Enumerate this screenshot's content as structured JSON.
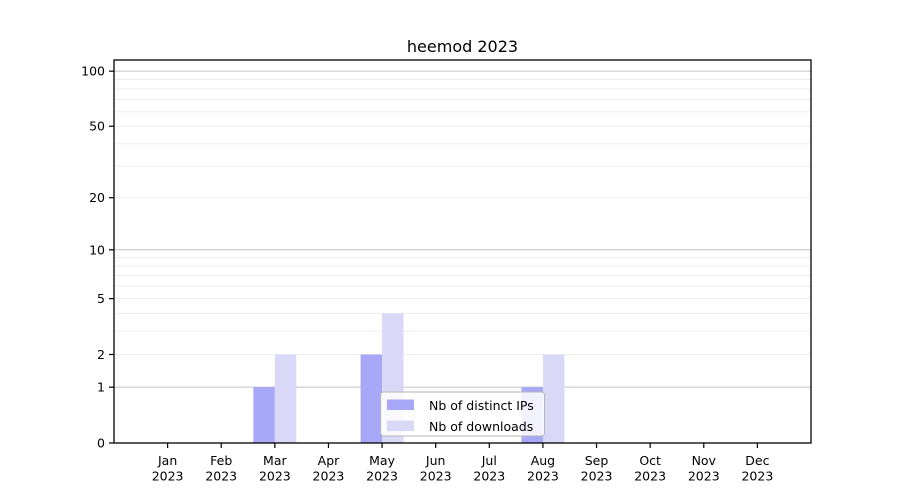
{
  "chart_data": {
    "type": "bar",
    "title": "heemod 2023",
    "categories": [
      "Jan",
      "Feb",
      "Mar",
      "Apr",
      "May",
      "Jun",
      "Jul",
      "Aug",
      "Sep",
      "Oct",
      "Nov",
      "Dec"
    ],
    "category_year": "2023",
    "series": [
      {
        "name": "Nb of distinct IPs",
        "color": "#a8a8f8",
        "values": [
          0,
          0,
          1,
          0,
          2,
          0,
          0,
          1,
          0,
          0,
          0,
          0
        ]
      },
      {
        "name": "Nb of downloads",
        "color": "#d9d9f7",
        "values": [
          0,
          0,
          2,
          0,
          4,
          0,
          0,
          2,
          0,
          0,
          0,
          0
        ]
      }
    ],
    "xlabel": "",
    "ylabel": "",
    "yscale": "log1p",
    "ylim": [
      0,
      115
    ],
    "y_ticks": [
      0,
      1,
      2,
      5,
      10,
      20,
      50,
      100
    ],
    "y_major_gridlines": [
      1,
      10,
      100
    ],
    "y_minor_gridlines": [
      2,
      3,
      4,
      5,
      6,
      7,
      8,
      9,
      20,
      30,
      40,
      50,
      60,
      70,
      80,
      90
    ],
    "grid": true,
    "legend_position": "lower center inside",
    "colors": {
      "major_gridline": "#c4c4c4",
      "minor_gridline": "#ededed",
      "axis_frame": "#000000",
      "tick_color": "#000000",
      "text": "#000000",
      "legend_border": "#b5b5b5",
      "legend_background": "rgba(255,255,255,0.85)"
    }
  }
}
